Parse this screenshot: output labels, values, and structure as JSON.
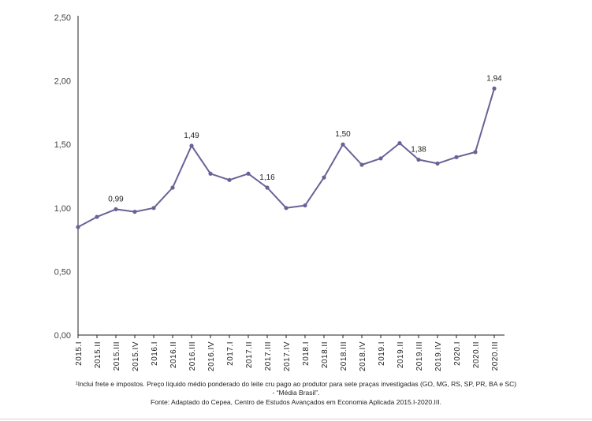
{
  "chart_data": {
    "type": "line",
    "categories": [
      "2015.I",
      "2015.II",
      "2015.III",
      "2015.IV",
      "2016.I",
      "2016.II",
      "2016.III",
      "2016.IV",
      "2017.I",
      "2017.II",
      "2017.III",
      "2017.IV",
      "2018.I",
      "2018.II",
      "2018.III",
      "2018.IV",
      "2019.I",
      "2019.II",
      "2019.III",
      "2019.IV",
      "2020.I",
      "2020.II",
      "2020.III"
    ],
    "values": [
      0.85,
      0.93,
      0.99,
      0.97,
      1.0,
      1.16,
      1.49,
      1.27,
      1.22,
      1.27,
      1.16,
      1.0,
      1.02,
      1.24,
      1.5,
      1.34,
      1.39,
      1.51,
      1.38,
      1.35,
      1.4,
      1.44,
      1.94
    ],
    "data_labels": [
      {
        "index": 2,
        "text": "0,99"
      },
      {
        "index": 6,
        "text": "1,49"
      },
      {
        "index": 10,
        "text": "1,16"
      },
      {
        "index": 14,
        "text": "1,50"
      },
      {
        "index": 18,
        "text": "1,38"
      },
      {
        "index": 22,
        "text": "1,94"
      }
    ],
    "yticks": [
      "0,00",
      "0,50",
      "1,00",
      "1,50",
      "2,00",
      "2,50"
    ],
    "ylim": [
      0,
      2.5
    ],
    "grid": false,
    "legend": "none",
    "line_color": "#6b6196",
    "xlabel": "",
    "ylabel": "",
    "title": ""
  },
  "notes": {
    "line1": "¹Inclui frete e impostos. Preço líquido médio ponderado do leite cru pago ao produtor para sete praças investigadas (GO, MG, RS, SP, PR, BA e SC)",
    "line2": "- “Média Brasil”.",
    "source": "Fonte: Adaptado do Cepea, Centro de Estudos Avançados em Economia Aplicada 2015.I-2020.III."
  }
}
